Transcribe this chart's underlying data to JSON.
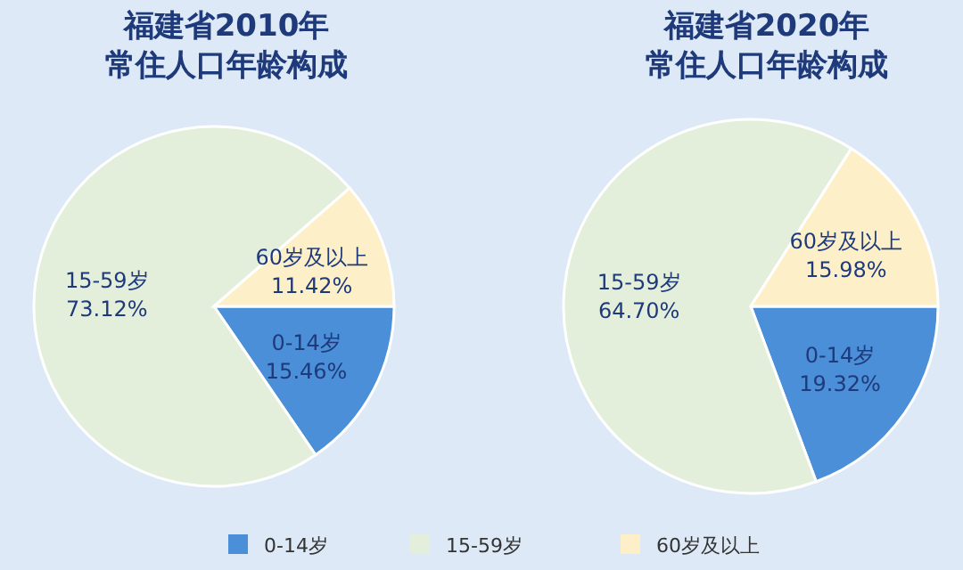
{
  "chart_data": [
    {
      "type": "pie",
      "title": "福建省2010年",
      "subtitle": "常住人口年龄构成",
      "categories": [
        "0-14岁",
        "15-59岁",
        "60岁及以上"
      ],
      "values": [
        15.46,
        73.12,
        11.42
      ],
      "value_labels": [
        "15.46%",
        "73.12%",
        "11.42%"
      ],
      "colors": [
        "#4a8fd8",
        "#e3eedb",
        "#fdf0c9"
      ],
      "legend": "bottom"
    },
    {
      "type": "pie",
      "title": "福建省2020年",
      "subtitle": "常住人口年龄构成",
      "categories": [
        "0-14岁",
        "15-59岁",
        "60岁及以上"
      ],
      "values": [
        19.32,
        64.7,
        15.98
      ],
      "value_labels": [
        "19.32%",
        "64.70%",
        "15.98%"
      ],
      "colors": [
        "#4a8fd8",
        "#e3eedb",
        "#fdf0c9"
      ]
    }
  ]
}
